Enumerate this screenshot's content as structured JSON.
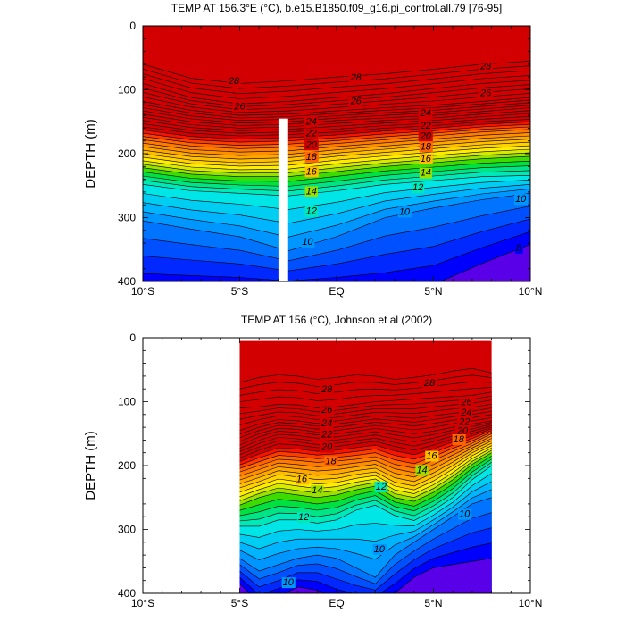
{
  "palette": [
    "#3e00c0",
    "#5a00e8",
    "#0000ff",
    "#0028ff",
    "#0050ff",
    "#0074ff",
    "#0096ff",
    "#00b4ff",
    "#00cdf2",
    "#00e6e6",
    "#00e8b8",
    "#00e486",
    "#00e040",
    "#3cdc00",
    "#9ae000",
    "#d8ea00",
    "#ffec00",
    "#ffd200",
    "#ffbe00",
    "#ffa600",
    "#ff8e00",
    "#ff7a00",
    "#ff6400",
    "#ff3c00",
    "#f41400",
    "#d20000"
  ],
  "chart_data": [
    {
      "type": "contour",
      "title": "TEMP AT 156.3°E (°C), b.e15.B1850.f09_g16.pi_control.all.79 [76-95]",
      "ylabel": "DEPTH (m)",
      "xlabel": "",
      "xlim": [
        -10,
        10
      ],
      "ylim": [
        400,
        0
      ],
      "x_ticks": [
        -10,
        -5,
        0,
        5,
        10
      ],
      "x_tick_labels": [
        "10°S",
        "5°S",
        "EQ",
        "5°N",
        "10°N"
      ],
      "y_ticks": [
        0,
        100,
        200,
        300,
        400
      ],
      "y_tick_labels": [
        "0",
        "100",
        "200",
        "300",
        "400"
      ],
      "data_xrange": [
        -10,
        10
      ],
      "grid": false,
      "masked_columns": [
        [
          -3.0,
          -2.5
        ]
      ],
      "masked_depth_from": 145,
      "isotherm_x": [
        -10,
        -7.5,
        -5,
        -2.5,
        0,
        2.5,
        5,
        7.5,
        10
      ],
      "isotherms": [
        {
          "t": 28,
          "depth": [
            60,
            82,
            90,
            86,
            80,
            75,
            68,
            60,
            55
          ]
        },
        {
          "t": 26,
          "depth": [
            90,
            112,
            122,
            118,
            112,
            106,
            98,
            90,
            85
          ]
        },
        {
          "t": 24,
          "depth": [
            118,
            132,
            140,
            138,
            133,
            128,
            124,
            118,
            112
          ]
        },
        {
          "t": 22,
          "depth": [
            138,
            150,
            156,
            154,
            148,
            144,
            140,
            134,
            128
          ]
        },
        {
          "t": 20,
          "depth": [
            158,
            168,
            172,
            170,
            166,
            160,
            156,
            150,
            146
          ]
        },
        {
          "t": 18,
          "depth": [
            178,
            188,
            192,
            190,
            184,
            178,
            172,
            166,
            162
          ]
        },
        {
          "t": 16,
          "depth": [
            200,
            210,
            214,
            212,
            204,
            198,
            192,
            186,
            182
          ]
        },
        {
          "t": 14,
          "depth": [
            222,
            232,
            236,
            236,
            228,
            220,
            214,
            208,
            204
          ]
        },
        {
          "t": 12,
          "depth": [
            248,
            258,
            262,
            266,
            258,
            248,
            242,
            236,
            234
          ]
        },
        {
          "t": 10,
          "depth": [
            305,
            318,
            330,
            352,
            330,
            300,
            285,
            272,
            262
          ]
        },
        {
          "t": 8,
          "depth": [
            415,
            415,
            415,
            415,
            415,
            415,
            405,
            372,
            342
          ]
        }
      ],
      "labels": [
        {
          "text": "28",
          "x": -5.3,
          "y": 85
        },
        {
          "text": "28",
          "x": 1.0,
          "y": 80
        },
        {
          "text": "28",
          "x": 7.7,
          "y": 62
        },
        {
          "text": "26",
          "x": -5.0,
          "y": 125
        },
        {
          "text": "26",
          "x": 1.0,
          "y": 117
        },
        {
          "text": "26",
          "x": 7.7,
          "y": 104
        },
        {
          "text": "24",
          "x": -1.3,
          "y": 149
        },
        {
          "text": "24",
          "x": 4.6,
          "y": 136
        },
        {
          "text": "22",
          "x": -1.3,
          "y": 167
        },
        {
          "text": "22",
          "x": 4.6,
          "y": 155
        },
        {
          "text": "20",
          "x": -1.3,
          "y": 185
        },
        {
          "text": "20",
          "x": 4.6,
          "y": 171
        },
        {
          "text": "18",
          "x": -1.3,
          "y": 204
        },
        {
          "text": "18",
          "x": 4.6,
          "y": 188
        },
        {
          "text": "16",
          "x": -1.3,
          "y": 227
        },
        {
          "text": "16",
          "x": 4.6,
          "y": 207
        },
        {
          "text": "14",
          "x": -1.3,
          "y": 258
        },
        {
          "text": "14",
          "x": 4.6,
          "y": 229
        },
        {
          "text": "12",
          "x": -1.3,
          "y": 289
        },
        {
          "text": "12",
          "x": 4.2,
          "y": 252
        },
        {
          "text": "10",
          "x": -1.5,
          "y": 337
        },
        {
          "text": "10",
          "x": 3.5,
          "y": 290
        },
        {
          "text": "10",
          "x": 9.5,
          "y": 270
        },
        {
          "text": "8",
          "x": 9.4,
          "y": 347
        }
      ]
    },
    {
      "type": "contour",
      "title": "TEMP AT 156 (°C), Johnson et al (2002)",
      "ylabel": "DEPTH (m)",
      "xlabel": "",
      "xlim": [
        -10,
        10
      ],
      "ylim": [
        400,
        0
      ],
      "x_ticks": [
        -10,
        -5,
        0,
        5,
        10
      ],
      "x_tick_labels": [
        "10°S",
        "5°S",
        "EQ",
        "5°N",
        "10°N"
      ],
      "y_ticks": [
        0,
        100,
        200,
        300,
        400
      ],
      "y_tick_labels": [
        "0",
        "100",
        "200",
        "300",
        "400"
      ],
      "data_xrange": [
        -5,
        8
      ],
      "data_top_depth": 5,
      "grid": false,
      "masked_columns": [],
      "isotherm_x": [
        -5,
        -4,
        -3,
        -2,
        -1,
        0,
        1,
        2,
        3,
        4,
        5,
        6,
        7,
        8
      ],
      "isotherms": [
        {
          "t": 28,
          "depth": [
            70,
            62,
            58,
            60,
            65,
            62,
            58,
            60,
            65,
            62,
            58,
            52,
            48,
            55
          ]
        },
        {
          "t": 26,
          "depth": [
            110,
            108,
            104,
            105,
            110,
            108,
            104,
            100,
            98,
            96,
            94,
            92,
            90,
            85
          ]
        },
        {
          "t": 24,
          "depth": [
            145,
            135,
            128,
            130,
            134,
            130,
            126,
            122,
            124,
            126,
            122,
            118,
            115,
            110
          ]
        },
        {
          "t": 22,
          "depth": [
            168,
            155,
            146,
            148,
            152,
            150,
            146,
            142,
            146,
            150,
            146,
            140,
            135,
            130
          ]
        },
        {
          "t": 20,
          "depth": [
            188,
            176,
            166,
            168,
            172,
            170,
            166,
            162,
            170,
            176,
            168,
            158,
            150,
            140
          ]
        },
        {
          "t": 18,
          "depth": [
            210,
            200,
            190,
            192,
            195,
            193,
            190,
            186,
            198,
            204,
            192,
            178,
            165,
            150
          ]
        },
        {
          "t": 16,
          "depth": [
            235,
            225,
            214,
            218,
            222,
            220,
            214,
            210,
            226,
            232,
            218,
            200,
            180,
            165
          ]
        },
        {
          "t": 14,
          "depth": [
            262,
            250,
            242,
            246,
            250,
            246,
            238,
            232,
            250,
            256,
            242,
            222,
            198,
            180
          ]
        },
        {
          "t": 12,
          "depth": [
            295,
            295,
            285,
            285,
            290,
            285,
            270,
            262,
            278,
            286,
            270,
            250,
            222,
            200
          ]
        },
        {
          "t": 10,
          "depth": [
            345,
            365,
            355,
            345,
            340,
            345,
            360,
            375,
            340,
            320,
            300,
            280,
            260,
            250
          ]
        },
        {
          "t": 8,
          "depth": [
            385,
            415,
            405,
            390,
            395,
            410,
            415,
            415,
            400,
            375,
            360,
            355,
            350,
            345
          ]
        }
      ],
      "labels": [
        {
          "text": "28",
          "x": -0.5,
          "y": 80
        },
        {
          "text": "28",
          "x": 4.8,
          "y": 70
        },
        {
          "text": "26",
          "x": -0.5,
          "y": 112
        },
        {
          "text": "26",
          "x": 6.7,
          "y": 100
        },
        {
          "text": "24",
          "x": -0.5,
          "y": 133
        },
        {
          "text": "24",
          "x": 6.7,
          "y": 116
        },
        {
          "text": "22",
          "x": -0.5,
          "y": 150
        },
        {
          "text": "22",
          "x": 6.6,
          "y": 131
        },
        {
          "text": "20",
          "x": -0.5,
          "y": 170
        },
        {
          "text": "20",
          "x": 6.5,
          "y": 145
        },
        {
          "text": "18",
          "x": -0.3,
          "y": 192
        },
        {
          "text": "18",
          "x": 6.3,
          "y": 158
        },
        {
          "text": "16",
          "x": -1.8,
          "y": 220
        },
        {
          "text": "16",
          "x": 4.9,
          "y": 184
        },
        {
          "text": "14",
          "x": -1.0,
          "y": 238
        },
        {
          "text": "14",
          "x": 4.4,
          "y": 206
        },
        {
          "text": "12",
          "x": 2.3,
          "y": 232
        },
        {
          "text": "12",
          "x": -1.7,
          "y": 280
        },
        {
          "text": "10",
          "x": 6.6,
          "y": 275
        },
        {
          "text": "10",
          "x": 2.2,
          "y": 330
        },
        {
          "text": "10",
          "x": -2.5,
          "y": 382
        }
      ]
    }
  ]
}
